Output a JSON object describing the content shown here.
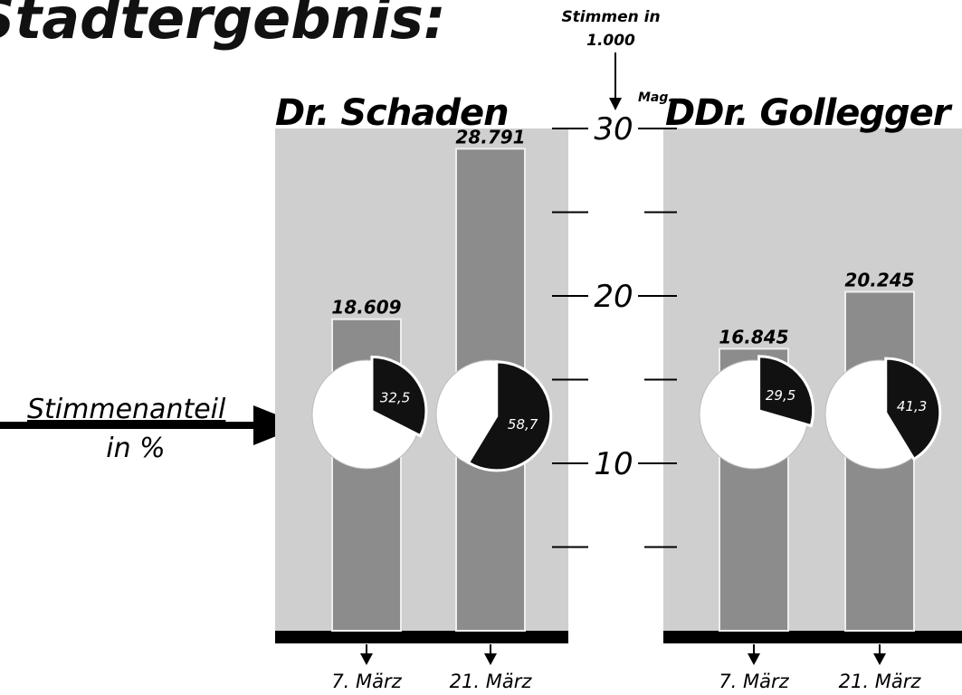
{
  "header": {
    "title": "Stadtergebnis:"
  },
  "axis": {
    "label": [
      "Stimmen in",
      "1.000"
    ],
    "ylim": [
      0,
      30
    ],
    "yticks": [
      10,
      20,
      30
    ],
    "minor_yticks": [
      5,
      15,
      25
    ]
  },
  "share_label": [
    "Stimmenanteil",
    "in %"
  ],
  "chart_data": [
    {
      "type": "bar",
      "title": "Dr. Schaden",
      "categories": [
        "7. März",
        "21. März"
      ],
      "values": [
        18.609,
        28.791
      ],
      "color": "#8c8c8c",
      "share": {
        "values": [
          32.5,
          58.7
        ],
        "value_labels": [
          "32,5",
          "58,7"
        ],
        "color": "#111111"
      }
    },
    {
      "type": "bar",
      "title_prefix": "Mag.",
      "title": "DDr. Gollegger",
      "categories": [
        "7. März",
        "21. März"
      ],
      "values": [
        16.845,
        20.245
      ],
      "color": "#8c8c8c",
      "share": {
        "values": [
          29.5,
          41.3
        ],
        "value_labels": [
          "29,5",
          "41,3"
        ],
        "color": "#111111"
      }
    }
  ]
}
